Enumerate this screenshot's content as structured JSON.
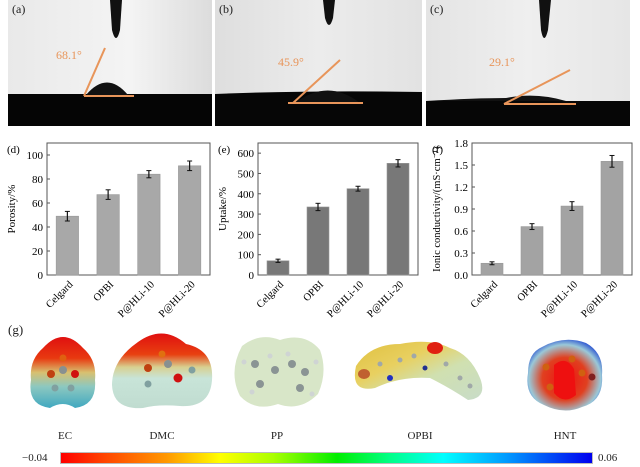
{
  "photos": [
    {
      "label": "(a)",
      "angle_label": "68.1°",
      "contact_angle_deg": 68.1
    },
    {
      "label": "(b)",
      "angle_label": "45.9°",
      "contact_angle_deg": 45.9
    },
    {
      "label": "(c)",
      "angle_label": "29.1°",
      "contact_angle_deg": 29.1
    }
  ],
  "colors": {
    "angle_line": "#e8955a",
    "bar_light": "#aaaaaa",
    "bar_dark": "#777777",
    "bar_mid": "#a3a3a3"
  },
  "chart_data": [
    {
      "type": "bar",
      "panel": "(d)",
      "title": "",
      "xlabel": "",
      "ylabel": "Porosity/%",
      "categories": [
        "Celgard",
        "OPBI",
        "P@HLi-10",
        "P@HLi-20"
      ],
      "values": [
        49,
        67,
        84,
        91
      ],
      "errors": [
        4,
        4,
        3,
        4
      ],
      "ylim": [
        0,
        110
      ],
      "yticks": [
        0,
        20,
        40,
        60,
        80,
        100
      ],
      "ytick_labels": [
        "0",
        "20",
        "40",
        "60",
        "80",
        "100"
      ],
      "grid": false
    },
    {
      "type": "bar",
      "panel": "(e)",
      "title": "",
      "xlabel": "",
      "ylabel": "Uptake/%",
      "categories": [
        "Celgard",
        "OPBI",
        "P@HLi-10",
        "P@HLi-20"
      ],
      "values": [
        70,
        335,
        425,
        550
      ],
      "errors": [
        8,
        18,
        12,
        18
      ],
      "ylim": [
        0,
        650
      ],
      "yticks": [
        0,
        100,
        200,
        300,
        400,
        500,
        600
      ],
      "ytick_labels": [
        "0",
        "100",
        "200",
        "300",
        "400",
        "500",
        "600"
      ],
      "grid": false
    },
    {
      "type": "bar",
      "panel": "(f)",
      "title": "",
      "xlabel": "",
      "ylabel": "Ionic conductivity/(mS·cm⁻¹)",
      "categories": [
        "Celgard",
        "OPBI",
        "P@HLi-10",
        "P@HLi-20"
      ],
      "values": [
        0.16,
        0.66,
        0.94,
        1.55
      ],
      "errors": [
        0.02,
        0.04,
        0.06,
        0.08
      ],
      "ylim": [
        0,
        1.8
      ],
      "yticks": [
        0.0,
        0.3,
        0.6,
        0.9,
        1.2,
        1.5,
        1.8
      ],
      "ytick_labels": [
        "0.0",
        "0.3",
        "0.6",
        "0.9",
        "1.2",
        "1.5",
        "1.8"
      ],
      "grid": false
    }
  ],
  "esp": {
    "label": "(g)",
    "molecules": [
      "EC",
      "DMC",
      "PP",
      "OPBI",
      "HNT"
    ],
    "colorbar_min": "−0.04",
    "colorbar_max": "0.06"
  }
}
